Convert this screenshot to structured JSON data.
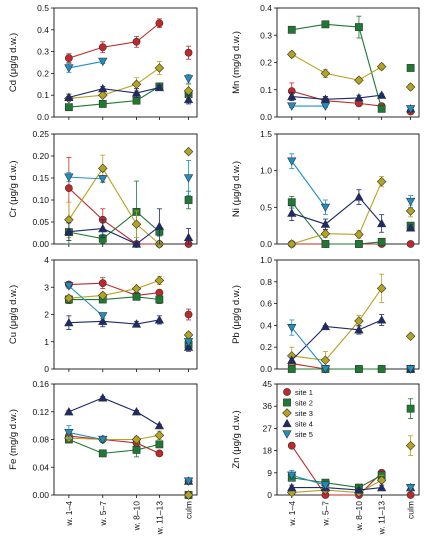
{
  "categories": [
    "w. 1–4",
    "w. 5–7",
    "w. 8–10",
    "w. 11–13",
    "culm"
  ],
  "series_styles": [
    {
      "key": "s1",
      "color": "#c0282a",
      "marker": "circle"
    },
    {
      "key": "s2",
      "color": "#1e7a33",
      "marker": "square"
    },
    {
      "key": "s3",
      "color": "#b5a320",
      "marker": "diamond"
    },
    {
      "key": "s4",
      "color": "#1c2a6e",
      "marker": "triangle-up"
    },
    {
      "key": "s5",
      "color": "#1e8fc4",
      "marker": "triangle-down"
    }
  ],
  "legend": {
    "position": "top-right of Zn panel",
    "entries": [
      "site 1",
      "site 2",
      "site 3",
      "site 4",
      "site 5"
    ]
  },
  "chart_data": [
    {
      "type": "line",
      "ylabel": "Cd (μg/g d.w.)",
      "ylim": [
        0,
        0.5
      ],
      "yticks": [
        "0.0",
        "0.1",
        "0.2",
        "0.3",
        "0.4",
        "0.5"
      ],
      "show_xticks": false,
      "series": [
        {
          "values": [
            0.27,
            0.32,
            0.345,
            0.43,
            0.295
          ],
          "err": [
            0.02,
            0.025,
            0.025,
            0.02,
            0.03
          ]
        },
        {
          "values": [
            0.045,
            0.06,
            0.075,
            0.14,
            0.105
          ],
          "err": [
            0.01,
            0.01,
            0.01,
            0.01,
            0.02
          ]
        },
        {
          "values": [
            0.085,
            0.1,
            0.15,
            0.225,
            0.12
          ],
          "err": [
            0.01,
            0.01,
            0.03,
            0.03,
            0.03
          ]
        },
        {
          "values": [
            0.09,
            0.13,
            0.11,
            0.135,
            0.08
          ],
          "err": [
            0.015,
            0.01,
            0.02,
            0.01,
            0.02
          ]
        },
        {
          "values": [
            0.225,
            0.255,
            null,
            null,
            0.175
          ],
          "err": [
            0.02,
            0.01,
            0,
            0,
            0.02
          ]
        }
      ]
    },
    {
      "type": "line",
      "ylabel": "Mn (mg/g d.w.)",
      "ylim": [
        0,
        0.4
      ],
      "yticks": [
        "0.0",
        "0.1",
        "0.2",
        "0.3",
        "0.4"
      ],
      "show_xticks": false,
      "series": [
        {
          "values": [
            0.095,
            0.06,
            0.05,
            0.04,
            0.02
          ],
          "err": [
            0.03,
            0.015,
            0.01,
            0.005,
            0.005
          ]
        },
        {
          "values": [
            0.32,
            0.34,
            0.33,
            0.03,
            0.18
          ],
          "err": [
            0.005,
            0.005,
            0.04,
            0.005,
            0.005
          ]
        },
        {
          "values": [
            0.23,
            0.16,
            0.135,
            0.185,
            0.11
          ],
          "err": [
            0.01,
            0.015,
            0.01,
            0.01,
            0.01
          ]
        },
        {
          "values": [
            0.075,
            0.065,
            0.07,
            0.08,
            0.03
          ],
          "err": [
            0.015,
            0.01,
            0.01,
            0.005,
            0.005
          ]
        },
        {
          "values": [
            0.04,
            0.04,
            null,
            null,
            0.03
          ],
          "err": [
            0.005,
            0.005,
            0,
            0,
            0.005
          ]
        }
      ]
    },
    {
      "type": "line",
      "ylabel": "Cr (μg/g d.w.)",
      "ylim": [
        0,
        0.25
      ],
      "yticks": [
        "0.00",
        "0.05",
        "0.10",
        "0.15",
        "0.20",
        "0.25"
      ],
      "show_xticks": false,
      "series": [
        {
          "values": [
            0.127,
            0.055,
            0.0,
            0.0,
            0.0
          ],
          "err": [
            0.07,
            0.025,
            0,
            0,
            0
          ]
        },
        {
          "values": [
            0.027,
            0.012,
            0.073,
            0.028,
            0.1
          ],
          "err": [
            0.03,
            0.01,
            0.07,
            0.01,
            0.02
          ]
        },
        {
          "values": [
            0.055,
            0.172,
            0.045,
            0.0,
            0.21
          ],
          "err": [
            0.04,
            0.03,
            0.03,
            0,
            0.005
          ]
        },
        {
          "values": [
            0.028,
            0.035,
            0.0,
            0.04,
            0.015
          ],
          "err": [
            0.02,
            0.02,
            0,
            0.04,
            0.02
          ]
        },
        {
          "values": [
            0.152,
            0.148,
            null,
            null,
            0.15
          ],
          "err": [
            0.01,
            0.008,
            0,
            0,
            0.04
          ]
        }
      ]
    },
    {
      "type": "line",
      "ylabel": "Ni (μg/g d.w.)",
      "ylim": [
        0,
        1.5
      ],
      "yticks": [
        "0.0",
        "0.5",
        "1.0",
        "1.5"
      ],
      "show_xticks": false,
      "series": [
        {
          "values": [
            0.0,
            0.0,
            0.0,
            0.0,
            0.0
          ],
          "err": [
            0,
            0,
            0,
            0,
            0
          ]
        },
        {
          "values": [
            0.57,
            0.0,
            0.0,
            0.03,
            0.25
          ],
          "err": [
            0.08,
            0,
            0,
            0.02,
            0.04
          ]
        },
        {
          "values": [
            0.0,
            0.14,
            0.13,
            0.85,
            0.45
          ],
          "err": [
            0,
            0.05,
            0.05,
            0.07,
            0.08
          ]
        },
        {
          "values": [
            0.42,
            0.27,
            0.64,
            0.28,
            0.22
          ],
          "err": [
            0.1,
            0.07,
            0.1,
            0.12,
            0.04
          ]
        },
        {
          "values": [
            1.13,
            0.5,
            null,
            null,
            0.58
          ],
          "err": [
            0.1,
            0.1,
            0,
            0,
            0.08
          ]
        }
      ]
    },
    {
      "type": "line",
      "ylabel": "Cu (μg/g d.w.)",
      "ylim": [
        0,
        4
      ],
      "yticks": [
        "0",
        "1",
        "2",
        "3",
        "4"
      ],
      "show_xticks": false,
      "series": [
        {
          "values": [
            3.1,
            3.15,
            2.7,
            2.8,
            2.0
          ],
          "err": [
            0.1,
            0.2,
            0.1,
            0.1,
            0.2
          ]
        },
        {
          "values": [
            2.55,
            2.55,
            2.65,
            2.55,
            0.9
          ],
          "err": [
            0.15,
            0.1,
            0.1,
            0.15,
            0.1
          ]
        },
        {
          "values": [
            2.6,
            2.7,
            2.95,
            3.25,
            1.25
          ],
          "err": [
            0.1,
            0.1,
            0.05,
            0.15,
            0.1
          ]
        },
        {
          "values": [
            1.7,
            1.75,
            1.65,
            1.8,
            0.8
          ],
          "err": [
            0.25,
            0.2,
            0.1,
            0.15,
            0.15
          ]
        },
        {
          "values": [
            3.05,
            1.95,
            null,
            null,
            1.0
          ],
          "err": [
            0.1,
            0.1,
            0,
            0,
            0.1
          ]
        }
      ]
    },
    {
      "type": "line",
      "ylabel": "Pb (μg/g d.w.)",
      "ylim": [
        0,
        1.0
      ],
      "yticks": [
        "0.0",
        "0.2",
        "0.4",
        "0.6",
        "0.8",
        "1.0"
      ],
      "show_xticks": false,
      "series": [
        {
          "values": [
            0.05,
            0.0,
            0.0,
            0.0,
            0.0
          ],
          "err": [
            0.02,
            0,
            0,
            0,
            0
          ]
        },
        {
          "values": [
            0.0,
            0.0,
            0.0,
            0.0,
            0.0
          ],
          "err": [
            0,
            0,
            0,
            0,
            0
          ]
        },
        {
          "values": [
            0.12,
            0.08,
            0.44,
            0.74,
            0.3
          ],
          "err": [
            0.08,
            0.08,
            0.05,
            0.13,
            0.01
          ]
        },
        {
          "values": [
            0.08,
            0.39,
            0.36,
            0.45,
            0.0
          ],
          "err": [
            0.02,
            0.01,
            0.04,
            0.05,
            0
          ]
        },
        {
          "values": [
            0.38,
            0.0,
            null,
            null,
            0.0
          ],
          "err": [
            0.07,
            0,
            0,
            0,
            0
          ]
        }
      ]
    },
    {
      "type": "line",
      "ylabel": "Fe (mg/g d.w.)",
      "ylim": [
        0,
        0.16
      ],
      "yticks": [
        "0.00",
        "0.04",
        "0.08",
        "0.12",
        "0.16"
      ],
      "show_xticks": true,
      "series": [
        {
          "values": [
            0.085,
            0.08,
            0.075,
            0.06,
            0.02
          ],
          "err": [
            0.004,
            0.003,
            0.004,
            0.003,
            0.002
          ]
        },
        {
          "values": [
            0.08,
            0.06,
            0.065,
            0.073,
            0.0
          ],
          "err": [
            0.004,
            0.003,
            0.01,
            0.004,
            0
          ]
        },
        {
          "values": [
            0.082,
            0.08,
            0.08,
            0.086,
            0.0
          ],
          "err": [
            0.004,
            0.003,
            0.004,
            0.006,
            0
          ]
        },
        {
          "values": [
            0.12,
            0.14,
            0.12,
            0.1,
            0.02
          ],
          "err": [
            0.002,
            0.002,
            0.002,
            0.002,
            0.002
          ]
        },
        {
          "values": [
            0.09,
            0.08,
            null,
            null,
            0.02
          ],
          "err": [
            0.01,
            0.003,
            0,
            0,
            0.002
          ]
        }
      ]
    },
    {
      "type": "line",
      "ylabel": "Zn (μg/g d.w.)",
      "ylim": [
        0,
        45
      ],
      "yticks": [
        "0",
        "9",
        "18",
        "27",
        "36",
        "45"
      ],
      "show_xticks": true,
      "series": [
        {
          "values": [
            20,
            0,
            0,
            9,
            0
          ],
          "err": [
            0,
            0,
            0,
            1,
            0
          ]
        },
        {
          "values": [
            7,
            5,
            3,
            8,
            35
          ],
          "err": [
            1,
            1,
            1,
            1,
            4
          ]
        },
        {
          "values": [
            1,
            2,
            1,
            6,
            20
          ],
          "err": [
            0.5,
            0.5,
            0.5,
            2,
            4
          ]
        },
        {
          "values": [
            3,
            3,
            2,
            3,
            3
          ],
          "err": [
            1,
            1,
            0.5,
            1,
            1
          ]
        },
        {
          "values": [
            8,
            4,
            null,
            null,
            3
          ],
          "err": [
            2,
            1,
            0,
            0,
            1
          ]
        }
      ]
    }
  ]
}
